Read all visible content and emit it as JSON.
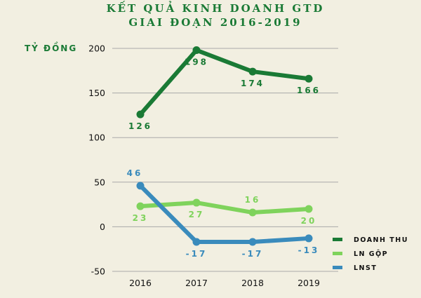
{
  "chart_data": {
    "type": "line",
    "title_line1": "KẾT QUẢ KINH DOANH GTD",
    "title_line2": "GIAI ĐOẠN 2016-2019",
    "ylabel": "TỶ ĐỒNG",
    "xlabel": "",
    "x": [
      "2016",
      "2017",
      "2018",
      "2019"
    ],
    "ylim": [
      -50,
      200
    ],
    "yticks": [
      -50,
      0,
      50,
      100,
      150,
      200
    ],
    "grid": true,
    "legend_position": "bottom-right",
    "series": [
      {
        "name": "DOANH THU",
        "values": [
          126,
          198,
          174,
          166
        ],
        "labels": [
          "126",
          "198",
          "174",
          "166"
        ],
        "color": "#1a7a35"
      },
      {
        "name": "LN GỘP",
        "values": [
          23,
          27,
          16,
          20
        ],
        "labels": [
          "23",
          "27",
          "16",
          "20"
        ],
        "color": "#7fd35c"
      },
      {
        "name": "LNST",
        "values": [
          46,
          -17,
          -17,
          -13
        ],
        "labels": [
          "46",
          "-17",
          "-17",
          "-13"
        ],
        "color": "#3a8bbc"
      }
    ]
  },
  "colors": {
    "title": "#1a7a35",
    "ylabel": "#1a7a35",
    "grid": "#a9a9a9",
    "background": "#f2efe1"
  }
}
